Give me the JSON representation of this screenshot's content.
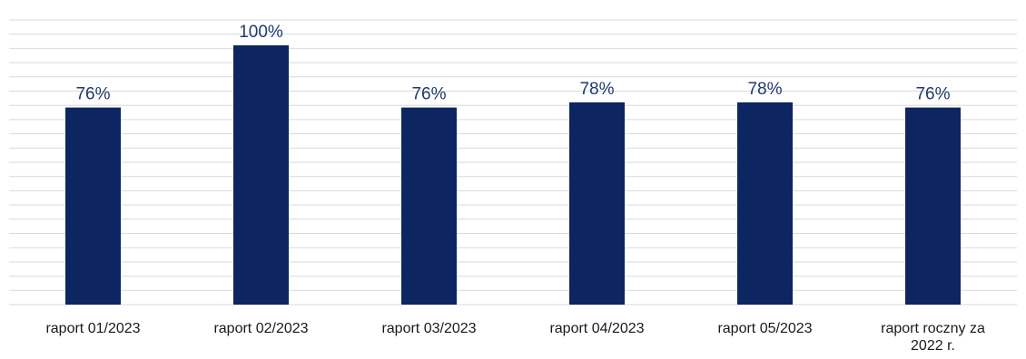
{
  "chart_data": {
    "type": "bar",
    "categories": [
      [
        "raport 01/2023"
      ],
      [
        "raport 02/2023"
      ],
      [
        "raport 03/2023"
      ],
      [
        "raport 04/2023"
      ],
      [
        "raport 05/2023"
      ],
      [
        "raport roczny za",
        "2022 r."
      ]
    ],
    "series": [
      {
        "values": [
          76,
          100,
          76,
          78,
          78,
          76
        ]
      }
    ],
    "data_labels": [
      "76%",
      "100%",
      "76%",
      "78%",
      "78%",
      "76%"
    ],
    "ylim": [
      0,
      100
    ],
    "grid": true,
    "legend": "none",
    "colors": {
      "bar": "#0d2561",
      "label": "#1f3a6e",
      "grid": "#d9d9d9"
    }
  }
}
